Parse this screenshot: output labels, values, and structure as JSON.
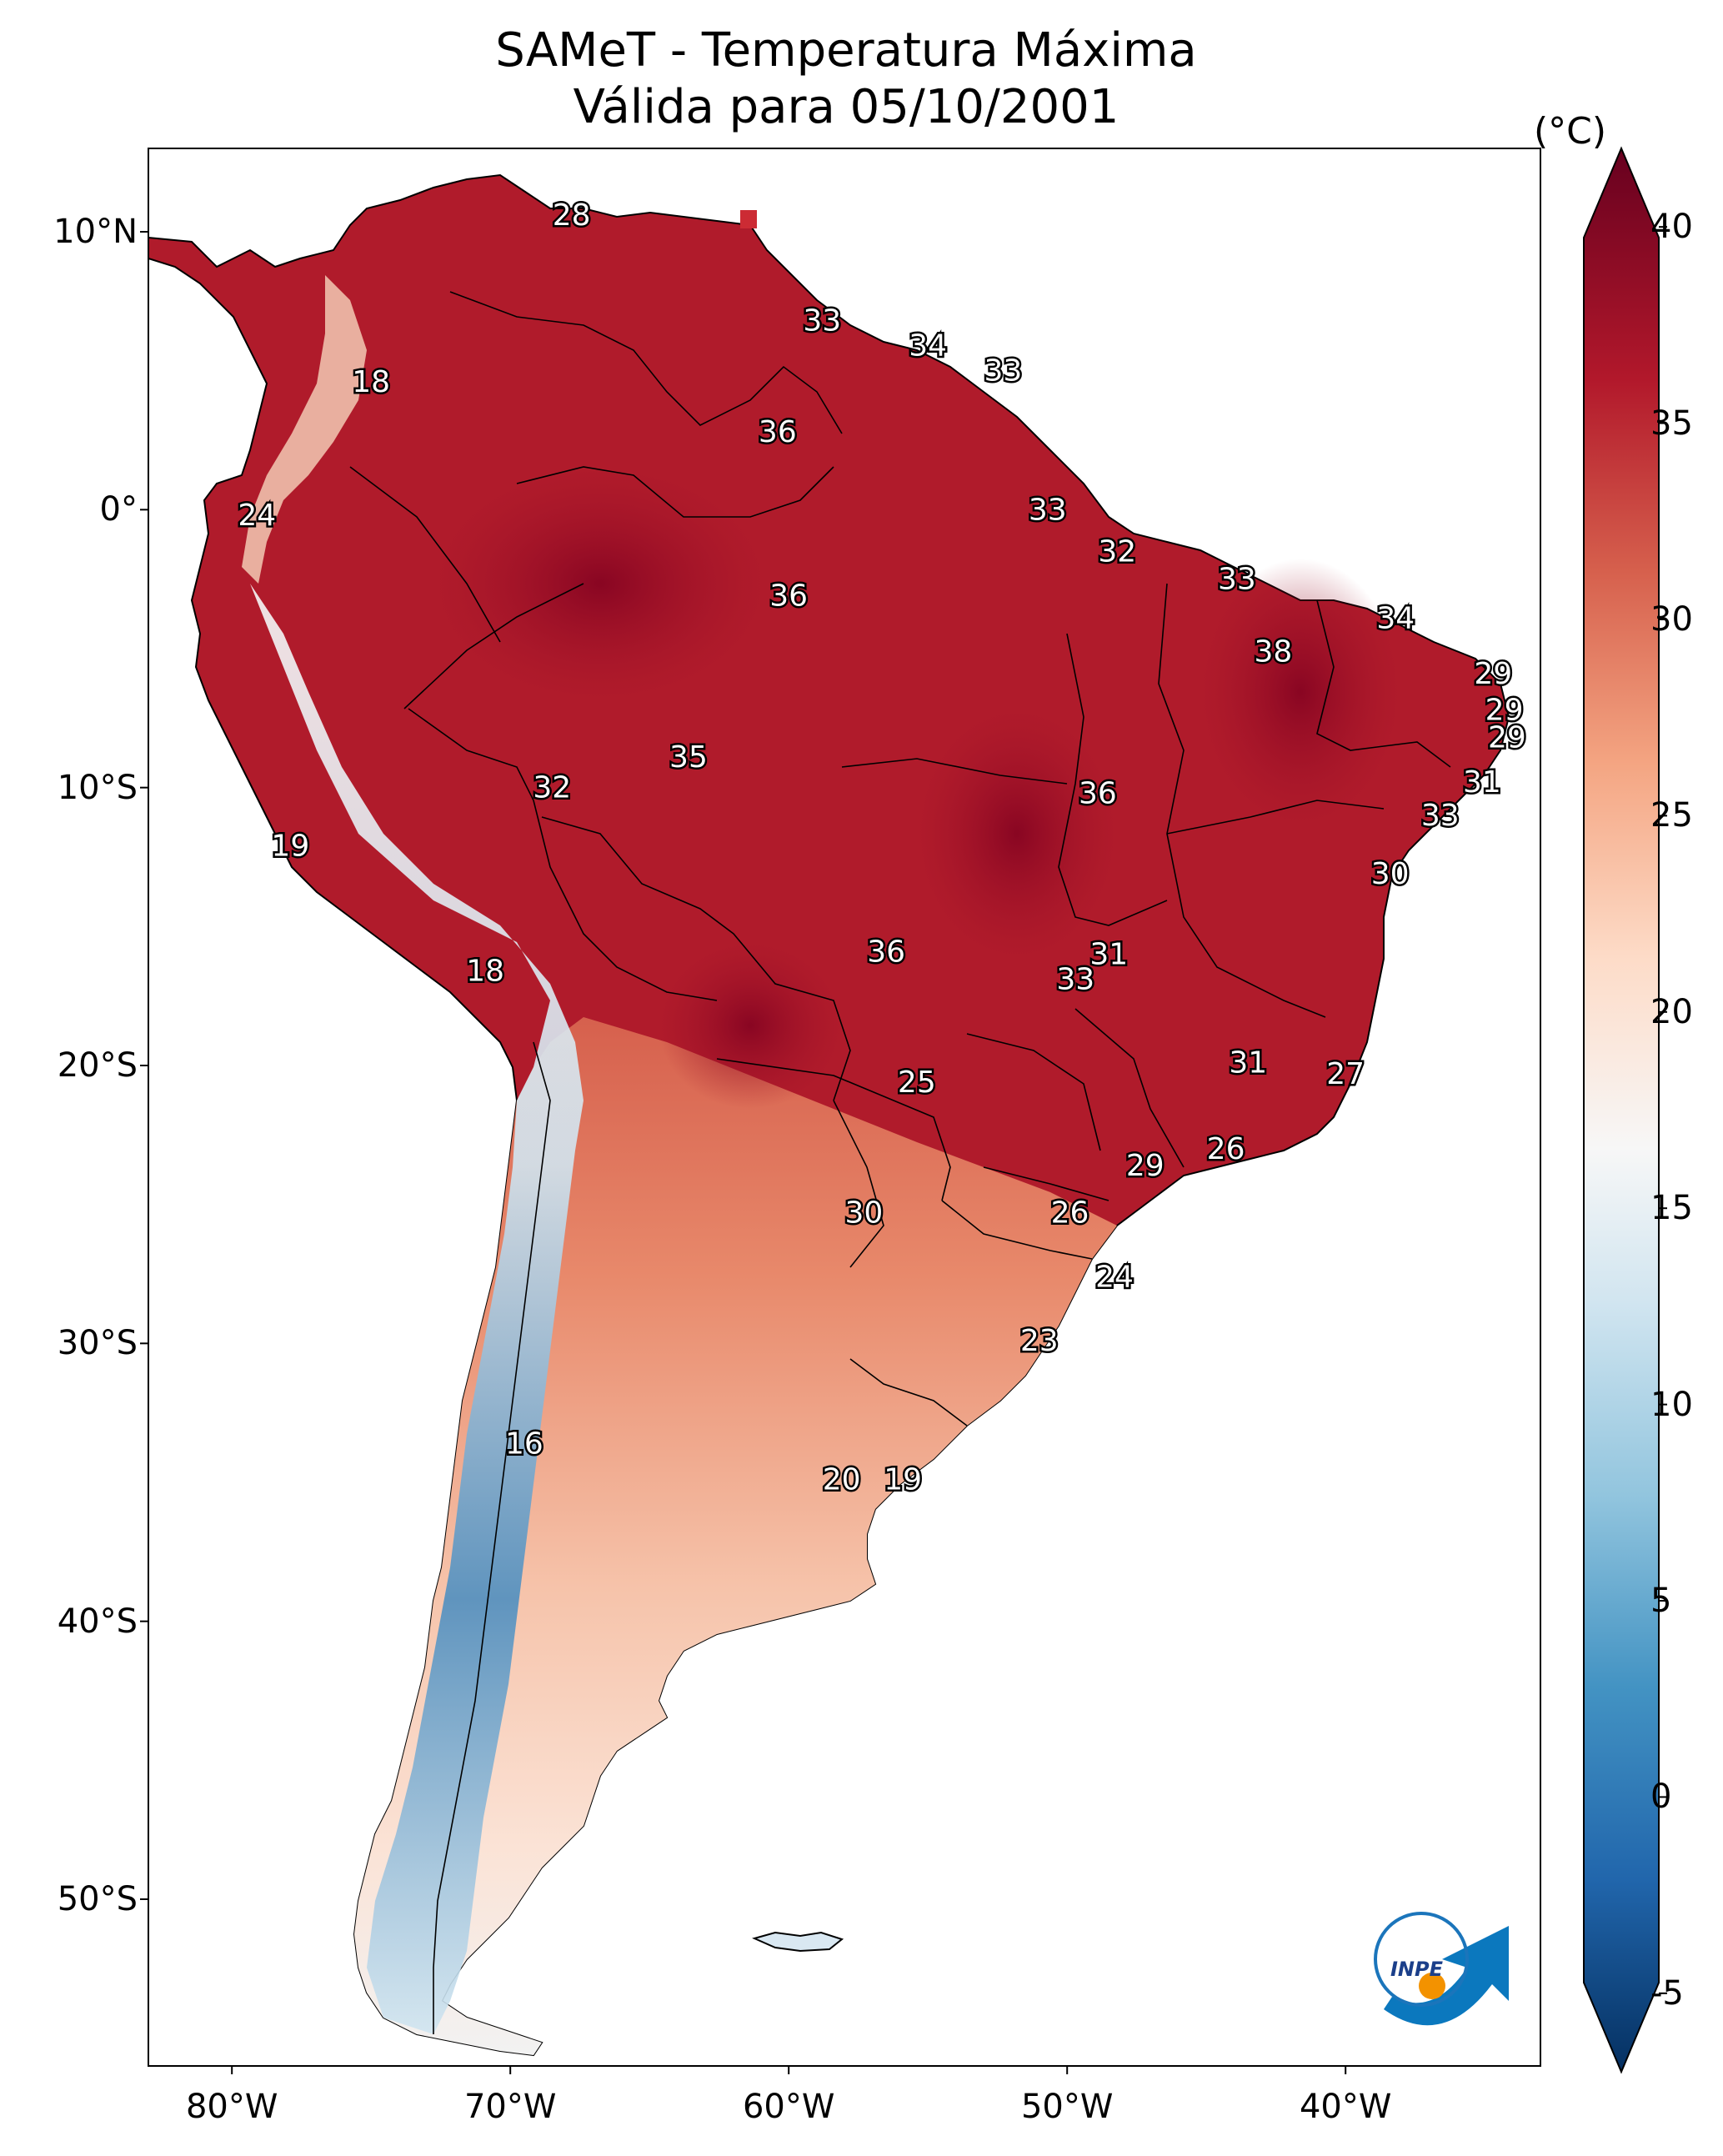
{
  "title": {
    "line1": "SAMeT - Temperatura Máxima",
    "line2": "Válida para 05/10/2001"
  },
  "map": {
    "extent": {
      "lon_min": -83,
      "lon_max": -33,
      "lat_min": -56,
      "lat_max": 13
    },
    "lat_ticks": [
      {
        "lat": 10,
        "label": "10°N"
      },
      {
        "lat": 0,
        "label": "0°"
      },
      {
        "lat": -10,
        "label": "10°S"
      },
      {
        "lat": -20,
        "label": "20°S"
      },
      {
        "lat": -30,
        "label": "30°S"
      },
      {
        "lat": -40,
        "label": "40°S"
      },
      {
        "lat": -50,
        "label": "50°S"
      }
    ],
    "lon_ticks": [
      {
        "lon": -80,
        "label": "80°W"
      },
      {
        "lon": -70,
        "label": "70°W"
      },
      {
        "lon": -60,
        "label": "60°W"
      },
      {
        "lon": -50,
        "label": "50°W"
      },
      {
        "lon": -40,
        "label": "40°W"
      }
    ],
    "temperature_labels": [
      {
        "lon": -67.8,
        "lat": 10.6,
        "value": "28"
      },
      {
        "lon": -75.0,
        "lat": 4.6,
        "value": "18"
      },
      {
        "lon": -58.8,
        "lat": 6.8,
        "value": "33"
      },
      {
        "lon": -55.0,
        "lat": 5.9,
        "value": "34"
      },
      {
        "lon": -52.3,
        "lat": 5.0,
        "value": "33"
      },
      {
        "lon": -60.4,
        "lat": 2.8,
        "value": "36"
      },
      {
        "lon": -79.1,
        "lat": -0.2,
        "value": "24"
      },
      {
        "lon": -50.7,
        "lat": 0.0,
        "value": "33"
      },
      {
        "lon": -48.2,
        "lat": -1.5,
        "value": "32"
      },
      {
        "lon": -60.0,
        "lat": -3.1,
        "value": "36"
      },
      {
        "lon": -43.9,
        "lat": -2.5,
        "value": "33"
      },
      {
        "lon": -38.2,
        "lat": -3.9,
        "value": "34"
      },
      {
        "lon": -42.6,
        "lat": -5.1,
        "value": "38"
      },
      {
        "lon": -34.7,
        "lat": -5.9,
        "value": "29"
      },
      {
        "lon": -34.3,
        "lat": -7.2,
        "value": "29"
      },
      {
        "lon": -34.2,
        "lat": -8.2,
        "value": "29"
      },
      {
        "lon": -63.6,
        "lat": -8.9,
        "value": "35"
      },
      {
        "lon": -68.5,
        "lat": -10.0,
        "value": "32"
      },
      {
        "lon": -48.9,
        "lat": -10.2,
        "value": "36"
      },
      {
        "lon": -35.1,
        "lat": -9.8,
        "value": "31"
      },
      {
        "lon": -36.6,
        "lat": -11.0,
        "value": "33"
      },
      {
        "lon": -77.9,
        "lat": -12.1,
        "value": "19"
      },
      {
        "lon": -38.4,
        "lat": -13.1,
        "value": "30"
      },
      {
        "lon": -70.9,
        "lat": -16.6,
        "value": "18"
      },
      {
        "lon": -56.5,
        "lat": -15.9,
        "value": "36"
      },
      {
        "lon": -48.5,
        "lat": -16.0,
        "value": "31"
      },
      {
        "lon": -49.7,
        "lat": -16.9,
        "value": "33"
      },
      {
        "lon": -55.4,
        "lat": -20.6,
        "value": "25"
      },
      {
        "lon": -43.5,
        "lat": -19.9,
        "value": "31"
      },
      {
        "lon": -40.0,
        "lat": -20.3,
        "value": "27"
      },
      {
        "lon": -44.3,
        "lat": -23.0,
        "value": "26"
      },
      {
        "lon": -47.2,
        "lat": -23.6,
        "value": "29"
      },
      {
        "lon": -57.3,
        "lat": -25.3,
        "value": "30"
      },
      {
        "lon": -49.9,
        "lat": -25.3,
        "value": "26"
      },
      {
        "lon": -48.3,
        "lat": -27.6,
        "value": "24"
      },
      {
        "lon": -51.0,
        "lat": -29.9,
        "value": "23"
      },
      {
        "lon": -69.5,
        "lat": -33.6,
        "value": "16"
      },
      {
        "lon": -58.1,
        "lat": -34.9,
        "value": "20"
      },
      {
        "lon": -55.9,
        "lat": -34.9,
        "value": "19"
      }
    ],
    "logo_text": "INPE"
  },
  "colorbar": {
    "unit": "(°C)",
    "min": -7,
    "max": 42,
    "ticks": [
      40,
      35,
      30,
      25,
      20,
      15,
      10,
      5,
      0,
      -5
    ],
    "colormap": "RdBu_r",
    "colors": [
      "#053061",
      "#2166ac",
      "#4393c3",
      "#92c5de",
      "#d1e5f0",
      "#f7f7f7",
      "#fddbc7",
      "#f4a582",
      "#d6604d",
      "#b2182b",
      "#67001f"
    ]
  }
}
